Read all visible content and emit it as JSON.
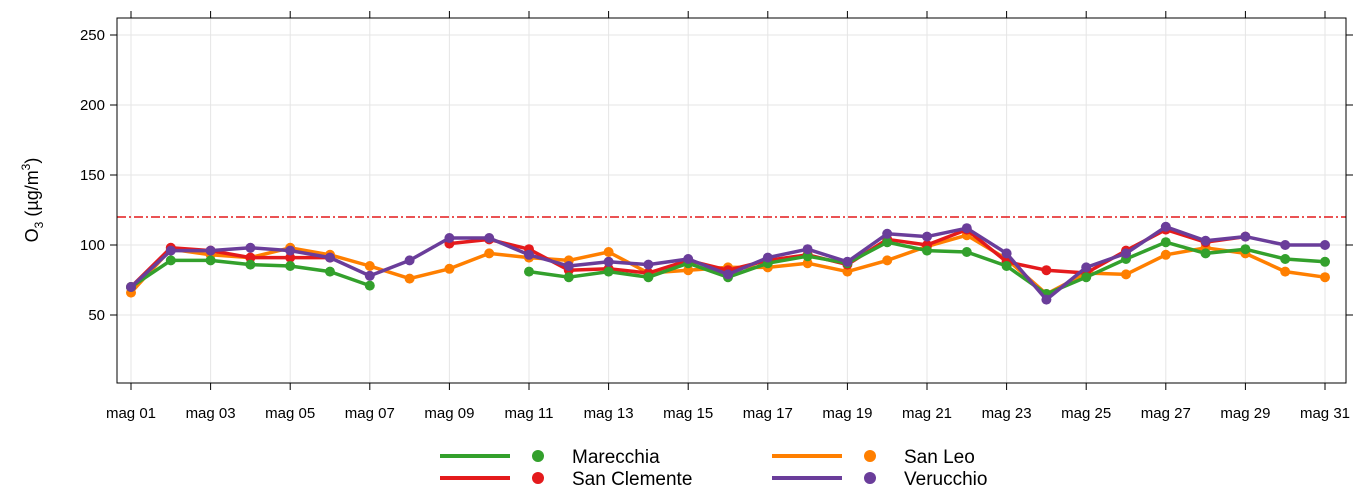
{
  "chart_data": {
    "type": "line",
    "title": "",
    "ylabel_main": "O",
    "ylabel_sub": "3",
    "ylabel_unit_open": " (µg/m",
    "ylabel_unit_sup": "3",
    "ylabel_unit_close": ")",
    "xlabel": "",
    "ylim": [
      0,
      260
    ],
    "y_ticks": [
      50,
      100,
      150,
      200,
      250
    ],
    "x_tick_labels": [
      "mag 01",
      "mag 03",
      "mag 05",
      "mag 07",
      "mag 09",
      "mag 11",
      "mag 13",
      "mag 15",
      "mag 17",
      "mag 19",
      "mag 21",
      "mag 23",
      "mag 25",
      "mag 27",
      "mag 29",
      "mag 31"
    ],
    "x_days": [
      1,
      2,
      3,
      4,
      5,
      6,
      7,
      8,
      9,
      10,
      11,
      12,
      13,
      14,
      15,
      16,
      17,
      18,
      19,
      20,
      21,
      22,
      23,
      24,
      25,
      26,
      27,
      28,
      29,
      30,
      31
    ],
    "threshold": {
      "value": 120,
      "color": "#e41a1c"
    },
    "grid": true,
    "legend_position": "bottom",
    "series": [
      {
        "name": "San Leo",
        "color": "#ff7f00",
        "values": [
          66,
          97,
          93,
          91,
          98,
          93,
          85,
          76,
          83,
          94,
          91,
          89,
          95,
          80,
          82,
          84,
          84,
          87,
          81,
          89,
          99,
          107,
          90,
          65,
          80,
          79,
          93,
          98,
          94,
          81,
          77
        ]
      },
      {
        "name": "San Clemente",
        "color": "#e41a1c",
        "values": [
          70,
          98,
          96,
          91,
          91,
          91,
          null,
          null,
          101,
          104,
          97,
          82,
          83,
          80,
          89,
          82,
          89,
          93,
          86,
          104,
          100,
          111,
          88,
          82,
          80,
          96,
          111,
          102,
          106,
          null,
          null
        ]
      },
      {
        "name": "Marecchia",
        "color": "#33a02c",
        "values": [
          70,
          89,
          89,
          86,
          85,
          81,
          71,
          null,
          null,
          null,
          81,
          77,
          81,
          77,
          87,
          77,
          87,
          92,
          87,
          102,
          96,
          95,
          85,
          65,
          77,
          90,
          102,
          94,
          97,
          90,
          88
        ]
      },
      {
        "name": "Verucchio",
        "color": "#6a3d9a",
        "values": [
          70,
          96,
          96,
          98,
          96,
          91,
          78,
          89,
          105,
          105,
          93,
          85,
          88,
          86,
          90,
          79,
          91,
          97,
          88,
          108,
          106,
          112,
          94,
          61,
          84,
          94,
          113,
          103,
          106,
          100,
          100
        ]
      }
    ],
    "legend": [
      {
        "name": "Marecchia",
        "color": "#33a02c"
      },
      {
        "name": "San Leo",
        "color": "#ff7f00"
      },
      {
        "name": "San Clemente",
        "color": "#e41a1c"
      },
      {
        "name": "Verucchio",
        "color": "#6a3d9a"
      }
    ]
  }
}
